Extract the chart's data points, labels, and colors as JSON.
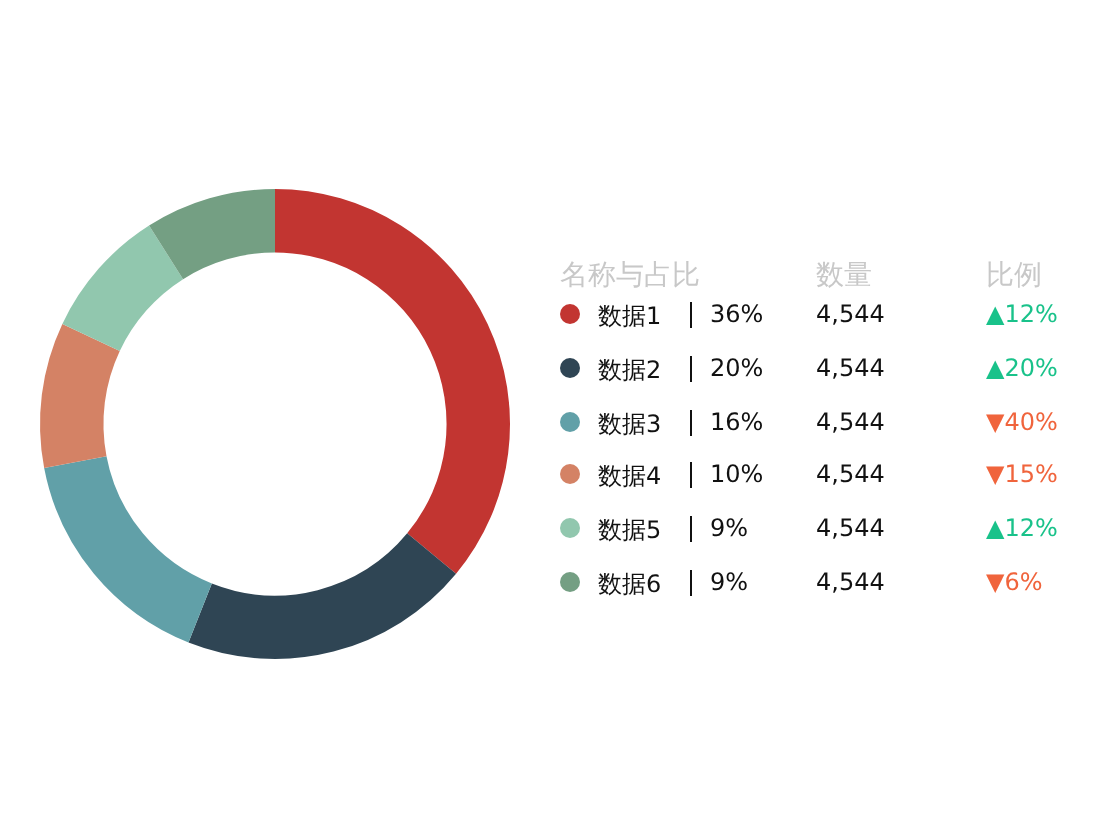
{
  "chart_data": {
    "type": "donut",
    "legend_title": "名称与占比",
    "legend": "right",
    "categories": [
      "数据1",
      "数据2",
      "数据3",
      "数据4",
      "数据5",
      "数据6"
    ],
    "values": [
      36,
      20,
      16,
      10,
      9,
      9
    ],
    "colors": [
      "#c23531",
      "#2f4554",
      "#61a0a8",
      "#d48265",
      "#91c7ae",
      "#749f83"
    ],
    "value_labels": [
      "36%",
      "20%",
      "16%",
      "10%",
      "9%",
      "9%"
    ],
    "annotations": [
      "数量",
      "比例",
      "4,544",
      "▲12%",
      "4,544",
      "▲20%",
      "4,544",
      "▼40%",
      "4,544",
      "▼15%",
      "4,544",
      "▲12%",
      "4,544",
      "▼6%"
    ]
  }
}
